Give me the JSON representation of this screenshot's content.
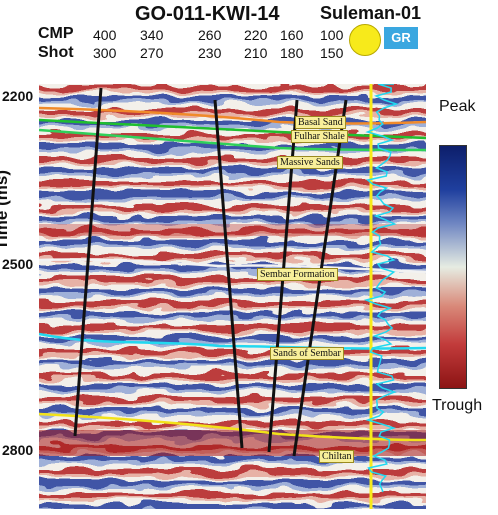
{
  "title": "GO-011-KWI-14",
  "well_name": "Suleman-01",
  "gr_label": "GR",
  "cmp": {
    "label": "CMP",
    "values": [
      "400",
      "340",
      "260",
      "220",
      "160",
      "100"
    ]
  },
  "shot": {
    "label": "Shot",
    "values": [
      "300",
      "270",
      "230",
      "210",
      "180",
      "150"
    ]
  },
  "y_axis": {
    "label": "Time (ms)",
    "ticks": [
      "2200",
      "2500",
      "2800"
    ]
  },
  "legend": {
    "top": "Peak",
    "bottom": "Trough"
  },
  "horizons": [
    {
      "name": "Basal Sand",
      "color": "#f08a2a"
    },
    {
      "name": "Fulhar Shale",
      "color": "#1fbf2f"
    },
    {
      "name": "Massive Sands",
      "color": "#2fd05a"
    },
    {
      "name": "Sembar Formation",
      "color": "#f2f2f2"
    },
    {
      "name": "Sands of Sembar",
      "color": "#22d8f0"
    },
    {
      "name": "Chiltan",
      "color": "#f2e21a"
    }
  ],
  "colors": {
    "peak": "#0d1f6b",
    "trough": "#8c1414",
    "well": "#f7ea1b",
    "gr_log": "#22d8f0",
    "fault": "#111111"
  }
}
